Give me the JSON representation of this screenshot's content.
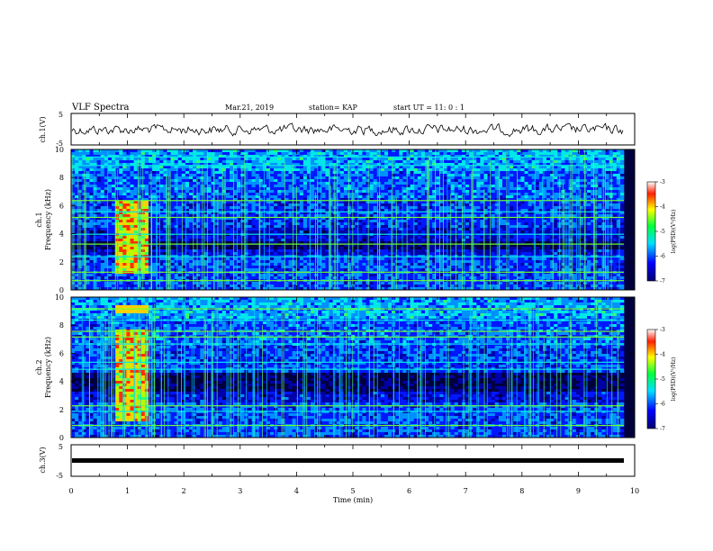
{
  "header": {
    "title": "VLF Spectra",
    "date": "Mar.21, 2019",
    "station": "station= KAP",
    "start": "start  UT =   11: 0   : 1"
  },
  "chart_data": [
    {
      "type": "line",
      "panel": "ch1-waveform",
      "ylabel": "ch.1(V)",
      "yticks": [
        "5",
        "-5"
      ],
      "ylim": [
        -5,
        5
      ],
      "xlim": [
        0,
        10
      ],
      "series": [
        {
          "values_note_free": true
        }
      ]
    },
    {
      "type": "heatmap",
      "panel": "ch1-spectrogram",
      "ylabel_line1": "ch.1",
      "ylabel_line2": "Frequency (kHz)",
      "yticks": [
        "0",
        "2",
        "4",
        "6",
        "8",
        "10"
      ],
      "ylim": [
        0,
        10
      ],
      "xlim": [
        0,
        10
      ],
      "burst_interval_min": [
        0.8,
        1.35
      ],
      "colorbar": {
        "label": "log(PSD)(V²/Hz)",
        "ticks": [
          "-3",
          "-4",
          "-5",
          "-6",
          "-7"
        ],
        "range": [
          -7,
          -3
        ]
      }
    },
    {
      "type": "heatmap",
      "panel": "ch2-spectrogram",
      "ylabel_line1": "ch.2",
      "ylabel_line2": "Frequency (kHz)",
      "yticks": [
        "0",
        "2",
        "4",
        "6",
        "8",
        "10"
      ],
      "ylim": [
        0,
        10
      ],
      "xlim": [
        0,
        10
      ],
      "burst_interval_min": [
        0.8,
        1.35
      ],
      "colorbar": {
        "label": "log(PSD)(V²/Hz)",
        "ticks": [
          "-3",
          "-4",
          "-5",
          "-6",
          "-7"
        ],
        "range": [
          -7,
          -3
        ]
      }
    },
    {
      "type": "line",
      "panel": "ch3-waveform",
      "ylabel": "ch.3(V)",
      "yticks": [
        "5",
        "-5"
      ],
      "ylim": [
        -5,
        5
      ],
      "xlim": [
        0,
        10
      ],
      "series": [
        {
          "level_volts": -0.4
        }
      ]
    }
  ],
  "xaxis": {
    "label": "Time  (min)",
    "ticks": [
      "0",
      "1",
      "2",
      "3",
      "4",
      "5",
      "6",
      "7",
      "8",
      "9",
      "10"
    ]
  },
  "colors": {
    "axis": "#000000",
    "bg_dark": "#00003c",
    "trace": "#000000"
  }
}
